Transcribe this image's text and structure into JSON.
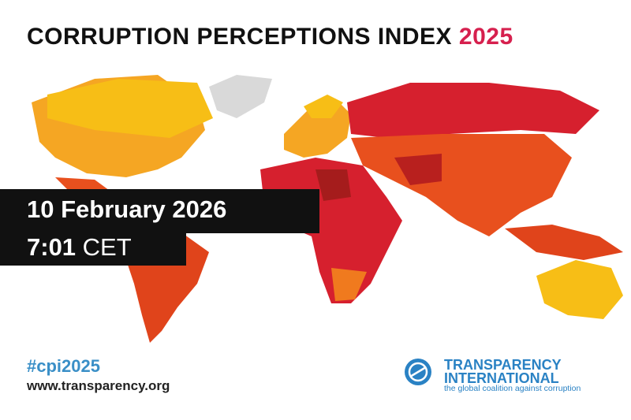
{
  "title": {
    "text": "CORRUPTION PERCEPTIONS INDEX",
    "year": "2025"
  },
  "event": {
    "date": "10 February 2026",
    "time": "7:01",
    "zone": "CET"
  },
  "footer": {
    "hashtag": "#cpi2025",
    "url": "www.transparency.org"
  },
  "logo": {
    "line1": "TRANSPARENCY",
    "line2": "INTERNATIONAL",
    "tagline": "the global coalition against corruption"
  }
}
